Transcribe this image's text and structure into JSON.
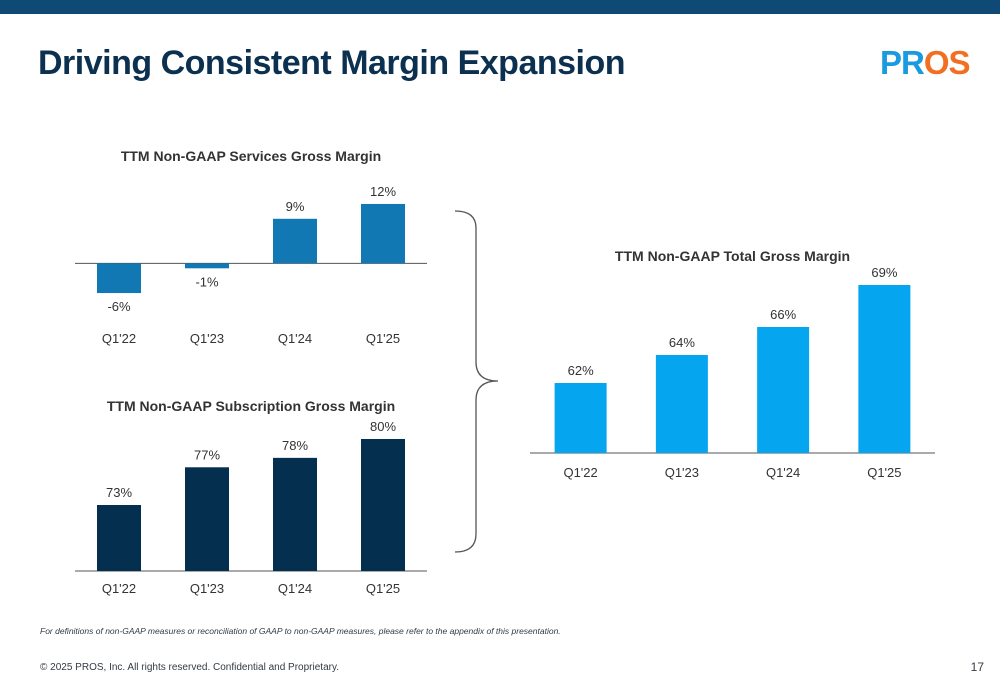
{
  "colors": {
    "top_bar": "#0e4a75",
    "title": "#0b3050",
    "services_bar": "#1178b4",
    "subscription_bar": "#052f4e",
    "total_bar": "#06a5f0",
    "axis": "#555555",
    "text": "#333333",
    "logo_blue": "#1a9be0",
    "logo_orange": "#f26f21"
  },
  "header": {
    "title": "Driving Consistent Margin Expansion",
    "logo_text": "PROS"
  },
  "chart_data": [
    {
      "id": "services",
      "type": "bar",
      "title": "TTM Non-GAAP Services Gross Margin",
      "categories": [
        "Q1'22",
        "Q1'23",
        "Q1'24",
        "Q1'25"
      ],
      "values": [
        -6,
        -1,
        9,
        12
      ],
      "data_labels": [
        "-6%",
        "-1%",
        "9%",
        "12%"
      ],
      "ylim": [
        -7,
        13
      ],
      "color": "#1178b4",
      "grid": false
    },
    {
      "id": "subscription",
      "type": "bar",
      "title": "TTM Non-GAAP Subscription Gross Margin",
      "categories": [
        "Q1'22",
        "Q1'23",
        "Q1'24",
        "Q1'25"
      ],
      "values": [
        73,
        77,
        78,
        80
      ],
      "data_labels": [
        "73%",
        "77%",
        "78%",
        "80%"
      ],
      "ylim": [
        66,
        80
      ],
      "color": "#052f4e",
      "grid": false
    },
    {
      "id": "total",
      "type": "bar",
      "title": "TTM Non-GAAP Total Gross Margin",
      "categories": [
        "Q1'22",
        "Q1'23",
        "Q1'24",
        "Q1'25"
      ],
      "values": [
        62,
        64,
        66,
        69
      ],
      "data_labels": [
        "62%",
        "64%",
        "66%",
        "69%"
      ],
      "ylim": [
        57,
        69
      ],
      "color": "#06a5f0",
      "grid": false
    }
  ],
  "footer": {
    "footnote": "For definitions of non-GAAP measures or reconciliation of GAAP to non-GAAP measures, please refer to the appendix of this presentation.",
    "copyright": "© 2025 PROS, Inc. All rights reserved. Confidential and Proprietary.",
    "page_number": "17"
  }
}
